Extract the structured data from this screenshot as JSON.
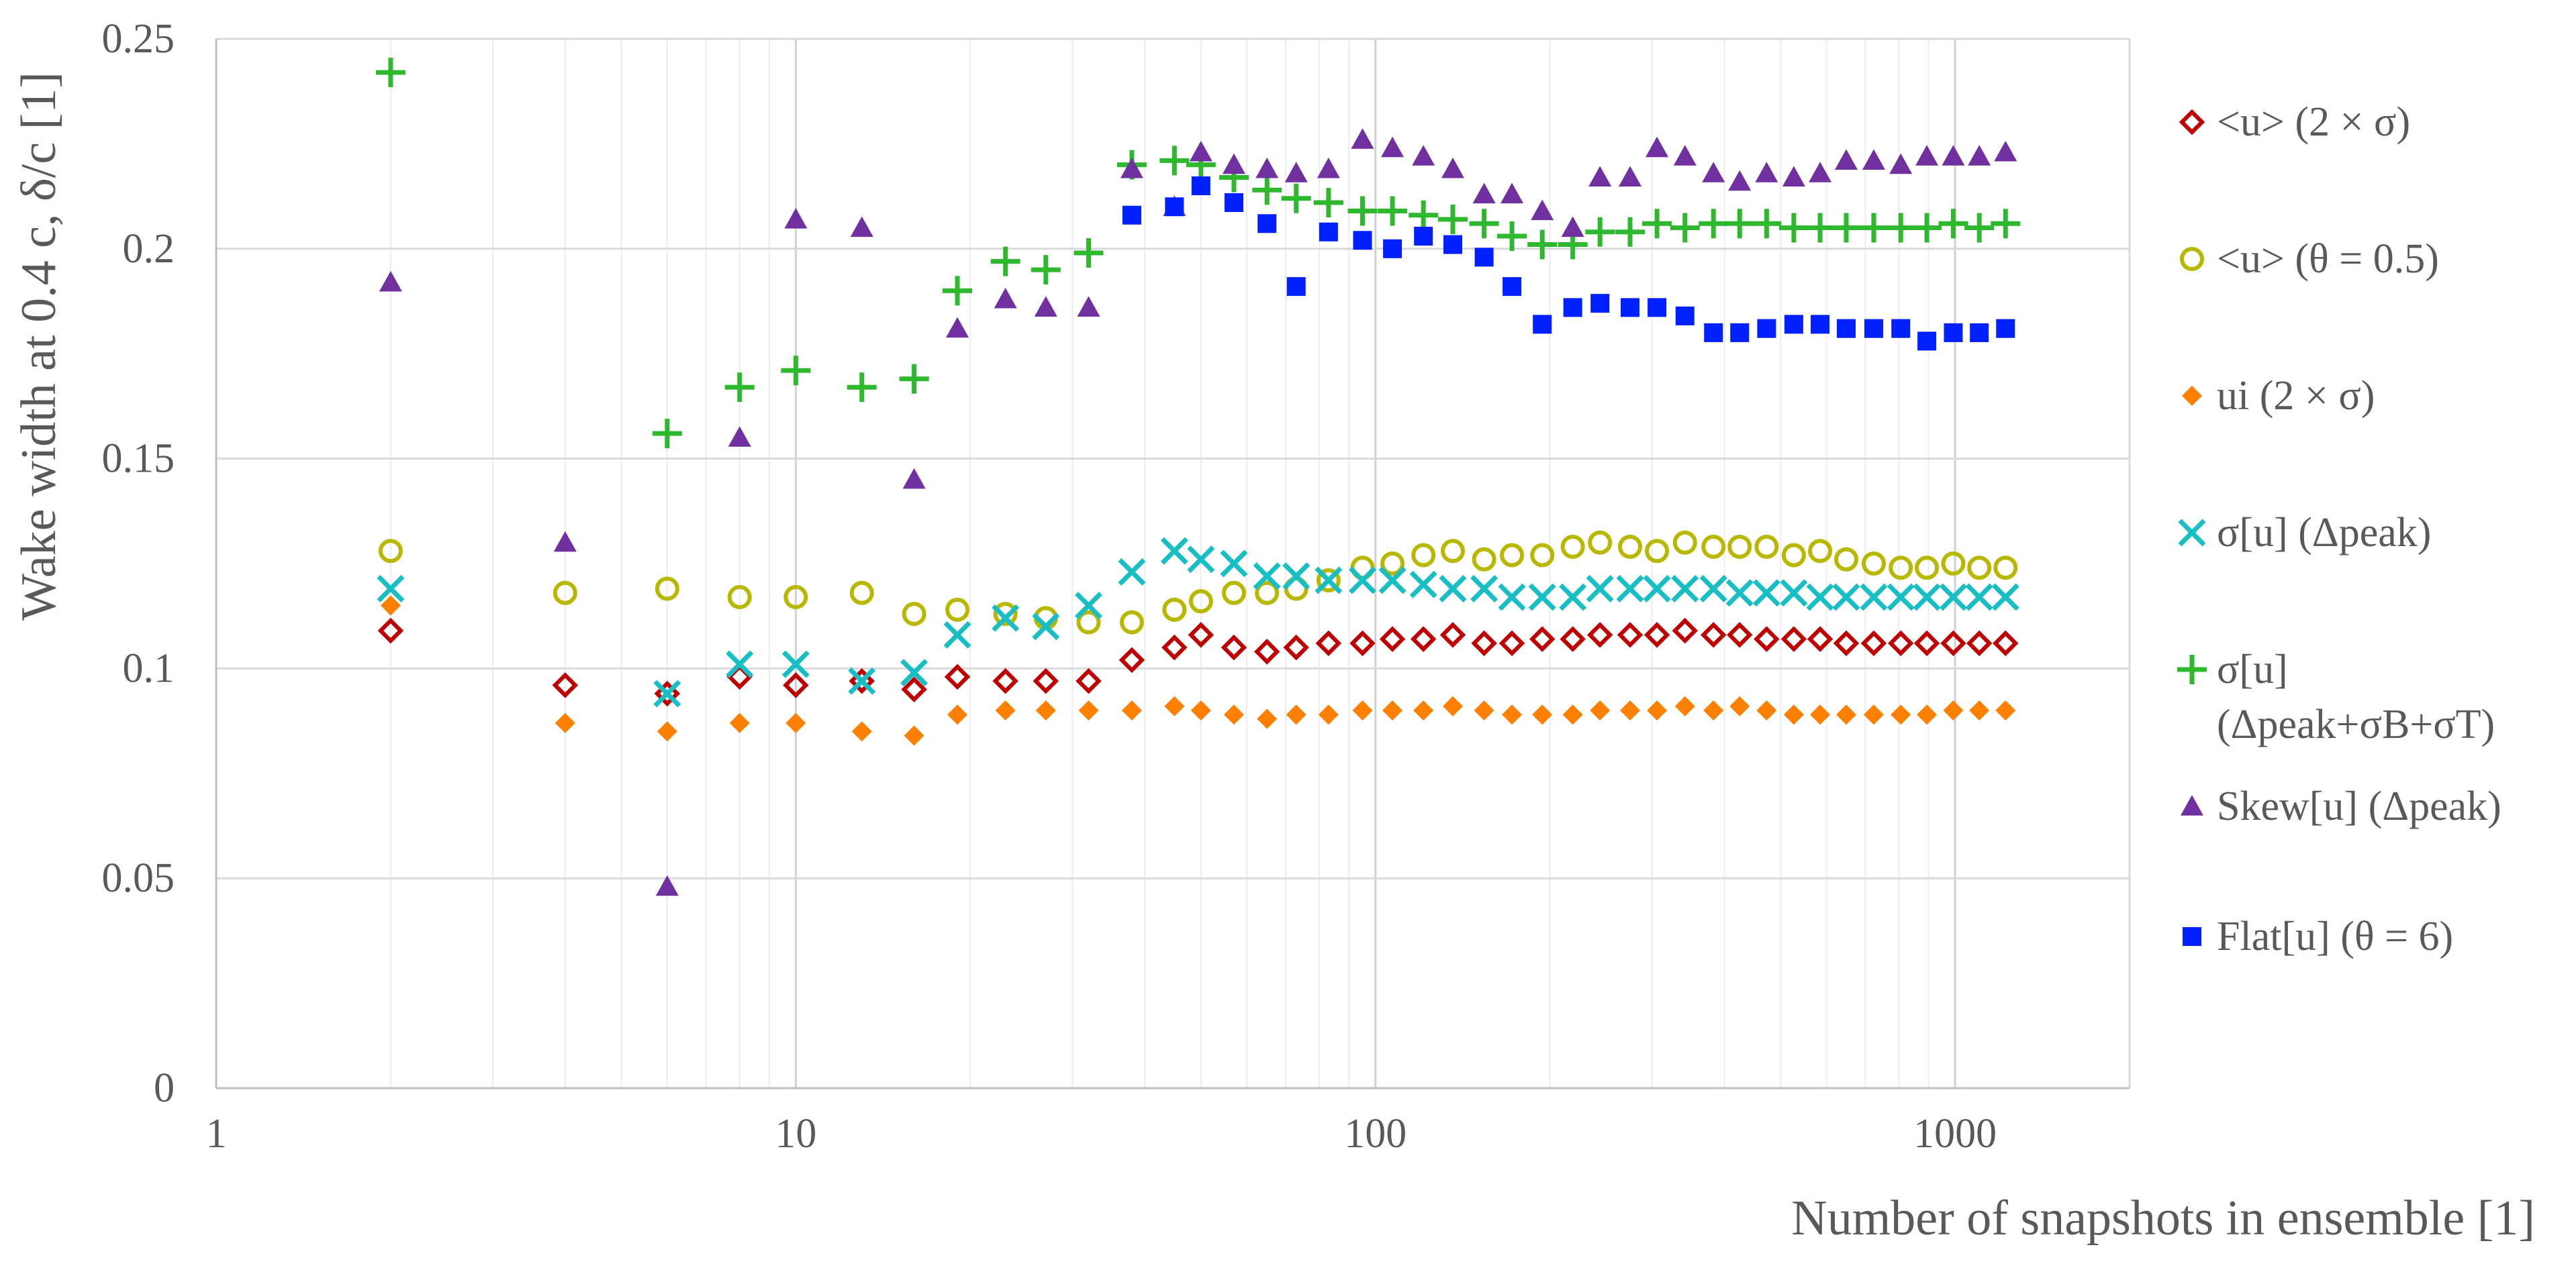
{
  "chart_data": {
    "type": "scatter",
    "x_scale": "log",
    "xlim": [
      1,
      2000
    ],
    "ylim": [
      0,
      0.25
    ],
    "x_ticks": [
      1,
      10,
      100,
      1000
    ],
    "x_tick_labels": [
      "1",
      "10",
      "100",
      "1000"
    ],
    "y_ticks": [
      0,
      0.05,
      0.1,
      0.15,
      0.2,
      0.25
    ],
    "y_tick_labels": [
      "0",
      "0.05",
      "0.1",
      "0.15",
      "0.2",
      "0.25"
    ],
    "xlabel": "Number of snapshots in ensemble [1]",
    "ylabel": "Wake width at 0.4 c, δ/c [1]",
    "grid": true,
    "legend_position": "right",
    "series": [
      {
        "name": "<u> (2 × σ)",
        "marker": "diamond-open",
        "color": "#c00000",
        "x": [
          2,
          4,
          6,
          8,
          10,
          13,
          16,
          19,
          23,
          27,
          32,
          38,
          45,
          50,
          57,
          65,
          73,
          83,
          95,
          107,
          121,
          136,
          154,
          172,
          194,
          219,
          244,
          275,
          306,
          342,
          383,
          425,
          473,
          527,
          585,
          649,
          724,
          806,
          894,
          993,
          1101,
          1222
        ],
        "y": [
          0.109,
          0.096,
          0.094,
          0.098,
          0.096,
          0.097,
          0.095,
          0.098,
          0.097,
          0.097,
          0.097,
          0.102,
          0.105,
          0.108,
          0.105,
          0.104,
          0.105,
          0.106,
          0.106,
          0.107,
          0.107,
          0.108,
          0.106,
          0.106,
          0.107,
          0.107,
          0.108,
          0.108,
          0.108,
          0.109,
          0.108,
          0.108,
          0.107,
          0.107,
          0.107,
          0.106,
          0.106,
          0.106,
          0.106,
          0.106,
          0.106,
          0.106
        ]
      },
      {
        "name": "<u> (θ = 0.5)",
        "marker": "circle-open",
        "color": "#b8b800",
        "x": [
          2,
          4,
          6,
          8,
          10,
          13,
          16,
          19,
          23,
          27,
          32,
          38,
          45,
          50,
          57,
          65,
          73,
          83,
          95,
          107,
          121,
          136,
          154,
          172,
          194,
          219,
          244,
          275,
          306,
          342,
          383,
          425,
          473,
          527,
          585,
          649,
          724,
          806,
          894,
          993,
          1101,
          1222
        ],
        "y": [
          0.128,
          0.118,
          0.119,
          0.117,
          0.117,
          0.118,
          0.113,
          0.114,
          0.113,
          0.112,
          0.111,
          0.111,
          0.114,
          0.116,
          0.118,
          0.118,
          0.119,
          0.121,
          0.124,
          0.125,
          0.127,
          0.128,
          0.126,
          0.127,
          0.127,
          0.129,
          0.13,
          0.129,
          0.128,
          0.13,
          0.129,
          0.129,
          0.129,
          0.127,
          0.128,
          0.126,
          0.125,
          0.124,
          0.124,
          0.125,
          0.124,
          0.124
        ]
      },
      {
        "name": "ui (2 × σ)",
        "marker": "diamond-filled",
        "color": "#ff7f00",
        "x": [
          2,
          4,
          6,
          8,
          10,
          13,
          16,
          19,
          23,
          27,
          32,
          38,
          45,
          50,
          57,
          65,
          73,
          83,
          95,
          107,
          121,
          136,
          154,
          172,
          194,
          219,
          244,
          275,
          306,
          342,
          383,
          425,
          473,
          527,
          585,
          649,
          724,
          806,
          894,
          993,
          1101,
          1222
        ],
        "y": [
          0.115,
          0.087,
          0.085,
          0.087,
          0.087,
          0.085,
          0.084,
          0.089,
          0.09,
          0.09,
          0.09,
          0.09,
          0.091,
          0.09,
          0.089,
          0.088,
          0.089,
          0.089,
          0.09,
          0.09,
          0.09,
          0.091,
          0.09,
          0.089,
          0.089,
          0.089,
          0.09,
          0.09,
          0.09,
          0.091,
          0.09,
          0.091,
          0.09,
          0.089,
          0.089,
          0.089,
          0.089,
          0.089,
          0.089,
          0.09,
          0.09,
          0.09
        ]
      },
      {
        "name": "σ[u] (Δpeak)",
        "marker": "x",
        "color": "#17bfc5",
        "x": [
          2,
          6,
          8,
          10,
          13,
          16,
          19,
          23,
          27,
          32,
          38,
          45,
          50,
          57,
          65,
          73,
          83,
          95,
          107,
          121,
          136,
          154,
          172,
          194,
          219,
          244,
          275,
          306,
          342,
          383,
          425,
          473,
          527,
          585,
          649,
          724,
          806,
          894,
          993,
          1101,
          1222
        ],
        "y": [
          0.119,
          0.094,
          0.101,
          0.101,
          0.097,
          0.099,
          0.108,
          0.112,
          0.11,
          0.115,
          0.123,
          0.128,
          0.126,
          0.125,
          0.122,
          0.122,
          0.121,
          0.121,
          0.121,
          0.12,
          0.119,
          0.119,
          0.117,
          0.117,
          0.117,
          0.119,
          0.119,
          0.119,
          0.119,
          0.119,
          0.118,
          0.118,
          0.118,
          0.117,
          0.117,
          0.117,
          0.117,
          0.117,
          0.117,
          0.117,
          0.117
        ]
      },
      {
        "name": "σ[u] (Δpeak+σB+σT)",
        "marker": "plus",
        "color": "#2db82d",
        "x": [
          2,
          6,
          8,
          10,
          13,
          16,
          19,
          23,
          27,
          32,
          38,
          45,
          50,
          57,
          65,
          73,
          83,
          95,
          107,
          121,
          136,
          154,
          172,
          194,
          219,
          244,
          275,
          306,
          342,
          383,
          425,
          473,
          527,
          585,
          649,
          724,
          806,
          894,
          993,
          1101,
          1222
        ],
        "y": [
          0.242,
          0.156,
          0.167,
          0.171,
          0.167,
          0.169,
          0.19,
          0.197,
          0.195,
          0.199,
          0.22,
          0.221,
          0.22,
          0.217,
          0.214,
          0.212,
          0.211,
          0.209,
          0.209,
          0.208,
          0.207,
          0.206,
          0.203,
          0.201,
          0.201,
          0.204,
          0.204,
          0.206,
          0.205,
          0.206,
          0.206,
          0.206,
          0.205,
          0.205,
          0.205,
          0.205,
          0.205,
          0.205,
          0.206,
          0.205,
          0.206
        ]
      },
      {
        "name": "Skew[u] (Δpeak)",
        "marker": "triangle",
        "color": "#7030a0",
        "x": [
          2,
          4,
          6,
          8,
          10,
          13,
          16,
          19,
          23,
          27,
          32,
          38,
          45,
          50,
          57,
          65,
          73,
          83,
          95,
          107,
          121,
          136,
          154,
          172,
          194,
          219,
          244,
          275,
          306,
          342,
          383,
          425,
          473,
          527,
          585,
          649,
          724,
          806,
          894,
          993,
          1101,
          1222
        ],
        "y": [
          0.192,
          0.13,
          0.048,
          0.155,
          0.207,
          0.205,
          0.145,
          0.181,
          0.188,
          0.186,
          0.186,
          0.219,
          0.21,
          0.223,
          0.22,
          0.219,
          0.218,
          0.219,
          0.226,
          0.224,
          0.222,
          0.219,
          0.213,
          0.213,
          0.209,
          0.205,
          0.217,
          0.217,
          0.224,
          0.222,
          0.218,
          0.216,
          0.218,
          0.217,
          0.218,
          0.221,
          0.221,
          0.22,
          0.222,
          0.222,
          0.222,
          0.223
        ]
      },
      {
        "name": "Flat[u] (θ = 6)",
        "marker": "square",
        "color": "#0020ff",
        "x": [
          38,
          45,
          50,
          57,
          65,
          73,
          83,
          95,
          107,
          121,
          136,
          154,
          172,
          194,
          219,
          244,
          275,
          306,
          342,
          383,
          425,
          473,
          527,
          585,
          649,
          724,
          806,
          894,
          993,
          1101,
          1222
        ],
        "y": [
          0.208,
          0.21,
          0.215,
          0.211,
          0.206,
          0.191,
          0.204,
          0.202,
          0.2,
          0.203,
          0.201,
          0.198,
          0.191,
          0.182,
          0.186,
          0.187,
          0.186,
          0.186,
          0.184,
          0.18,
          0.18,
          0.181,
          0.182,
          0.182,
          0.181,
          0.181,
          0.181,
          0.178,
          0.18,
          0.18,
          0.181
        ]
      }
    ]
  }
}
